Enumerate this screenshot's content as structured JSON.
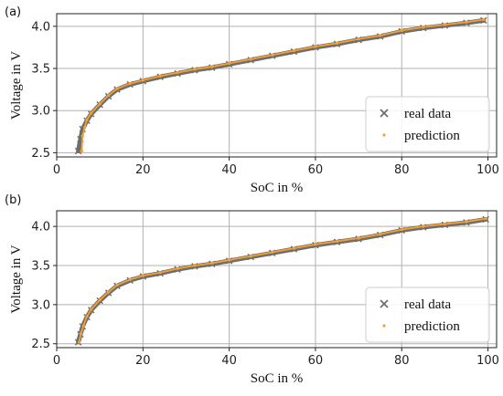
{
  "chart_data": [
    {
      "panel_label": "(a)",
      "type": "scatter",
      "xlabel": "SoC in %",
      "ylabel": "Voltage in V",
      "xlim": [
        0,
        102
      ],
      "ylim": [
        2.45,
        4.15
      ],
      "x_ticks": [
        "0",
        "20",
        "40",
        "60",
        "80",
        "100"
      ],
      "y_ticks": [
        "2.5",
        "3.0",
        "3.5",
        "4.0"
      ],
      "grid": true,
      "legend": "lower-right",
      "series": [
        {
          "name": "real data",
          "marker": "x",
          "color": "#6e6e6e",
          "x": [
            5,
            5.5,
            6,
            7,
            8,
            10,
            12,
            14,
            17,
            20,
            24,
            28,
            32,
            36,
            40,
            45,
            50,
            55,
            60,
            65,
            70,
            75,
            80,
            85,
            90,
            95,
            99
          ],
          "y": [
            2.52,
            2.66,
            2.78,
            2.88,
            2.96,
            3.07,
            3.17,
            3.25,
            3.31,
            3.35,
            3.4,
            3.44,
            3.48,
            3.51,
            3.55,
            3.6,
            3.65,
            3.7,
            3.75,
            3.79,
            3.84,
            3.88,
            3.94,
            3.98,
            4.01,
            4.04,
            4.07
          ]
        },
        {
          "name": "prediction",
          "marker": "dot",
          "color": "#f5a030",
          "x": [
            5.8,
            6,
            6.5,
            7,
            8,
            10,
            12,
            14,
            17,
            20,
            24,
            28,
            32,
            36,
            40,
            45,
            50,
            55,
            60,
            65,
            70,
            75,
            80,
            85,
            90,
            95,
            99
          ],
          "y": [
            2.52,
            2.7,
            2.8,
            2.89,
            2.97,
            3.08,
            3.18,
            3.26,
            3.32,
            3.36,
            3.41,
            3.45,
            3.49,
            3.52,
            3.56,
            3.61,
            3.66,
            3.71,
            3.76,
            3.8,
            3.85,
            3.89,
            3.95,
            3.99,
            4.02,
            4.05,
            4.08
          ]
        }
      ]
    },
    {
      "panel_label": "(b)",
      "type": "scatter",
      "xlabel": "SoC in %",
      "ylabel": "Voltage in V",
      "xlim": [
        0,
        102
      ],
      "ylim": [
        2.45,
        4.2
      ],
      "x_ticks": [
        "0",
        "20",
        "40",
        "60",
        "80",
        "100"
      ],
      "y_ticks": [
        "2.5",
        "3.0",
        "3.5",
        "4.0"
      ],
      "grid": true,
      "legend": "lower-right",
      "series": [
        {
          "name": "real data",
          "marker": "x",
          "color": "#6e6e6e",
          "x": [
            5,
            5.5,
            6,
            7,
            8,
            10,
            12,
            14,
            17,
            20,
            24,
            28,
            32,
            36,
            40,
            45,
            50,
            55,
            60,
            65,
            70,
            75,
            80,
            85,
            90,
            95,
            99.5
          ],
          "y": [
            2.52,
            2.62,
            2.72,
            2.84,
            2.93,
            3.05,
            3.15,
            3.24,
            3.31,
            3.36,
            3.4,
            3.45,
            3.49,
            3.52,
            3.56,
            3.61,
            3.66,
            3.71,
            3.76,
            3.8,
            3.84,
            3.89,
            3.95,
            3.99,
            4.02,
            4.05,
            4.09
          ]
        },
        {
          "name": "prediction",
          "marker": "dot",
          "color": "#f5a030",
          "x": [
            5.2,
            5.6,
            6.2,
            7,
            8,
            10,
            12,
            14,
            17,
            20,
            24,
            28,
            32,
            36,
            40,
            45,
            50,
            55,
            60,
            65,
            70,
            75,
            80,
            85,
            90,
            95,
            99.5
          ],
          "y": [
            2.52,
            2.63,
            2.73,
            2.85,
            2.94,
            3.06,
            3.16,
            3.25,
            3.32,
            3.37,
            3.41,
            3.46,
            3.5,
            3.53,
            3.57,
            3.62,
            3.67,
            3.72,
            3.77,
            3.81,
            3.85,
            3.9,
            3.96,
            4.0,
            4.03,
            4.06,
            4.1
          ]
        }
      ]
    }
  ]
}
